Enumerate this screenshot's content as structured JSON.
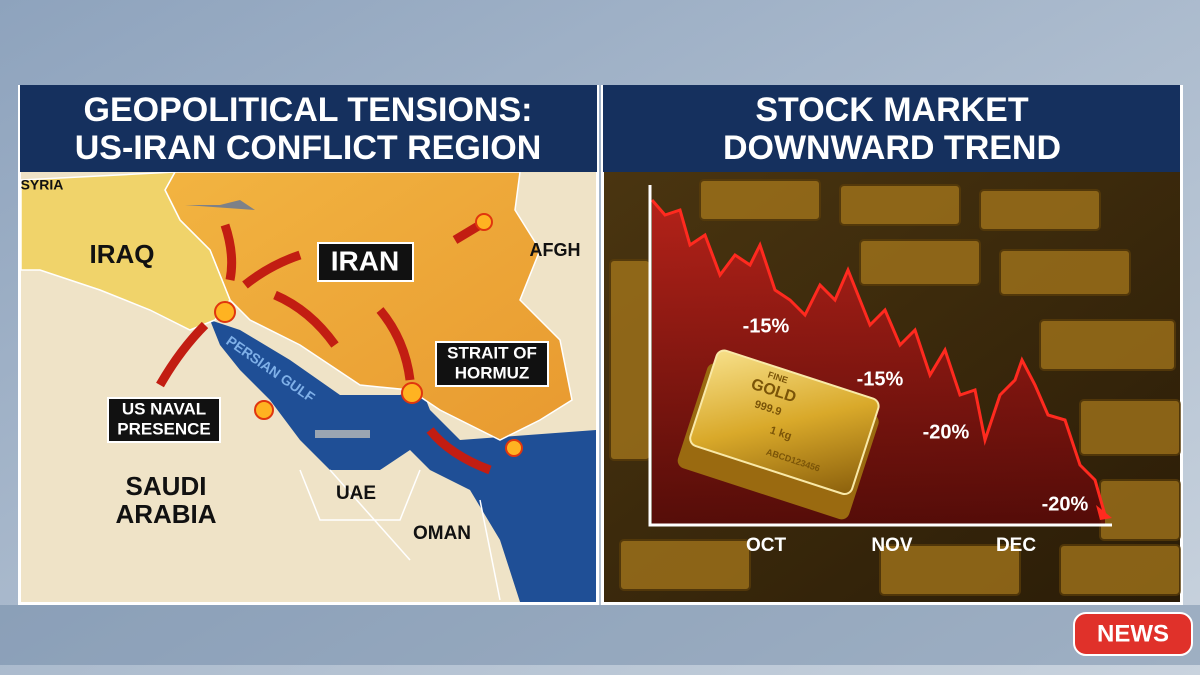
{
  "map_panel": {
    "title": [
      "GEOPOLITICAL TENSIONS:",
      "US-IRAN CONFLICT REGION"
    ],
    "labels": {
      "syria": "SYRIA",
      "iraq": "IRAQ",
      "iran": "IRAN",
      "afgh": "AFGH",
      "persian_gulf": "PERSIAN GULF",
      "strait": [
        "STRAIT OF",
        "HORMUZ"
      ],
      "naval": [
        "US NAVAL",
        "PRESENCE"
      ],
      "saudi": [
        "SAUDI",
        "ARABIA"
      ],
      "uae": "UAE",
      "oman": "OMAN"
    }
  },
  "market_panel": {
    "title": [
      "STOCK MARKET",
      "DOWNWARD TREND"
    ],
    "annotations": [
      "-15%",
      "-15%",
      "-20%",
      "-20%"
    ],
    "months": [
      "OCT",
      "NOV",
      "DEC"
    ],
    "gold_bar": [
      "FINE",
      "GOLD",
      "999.9",
      "1 kg",
      "ABCD123456"
    ]
  },
  "badge": "NEWS"
}
